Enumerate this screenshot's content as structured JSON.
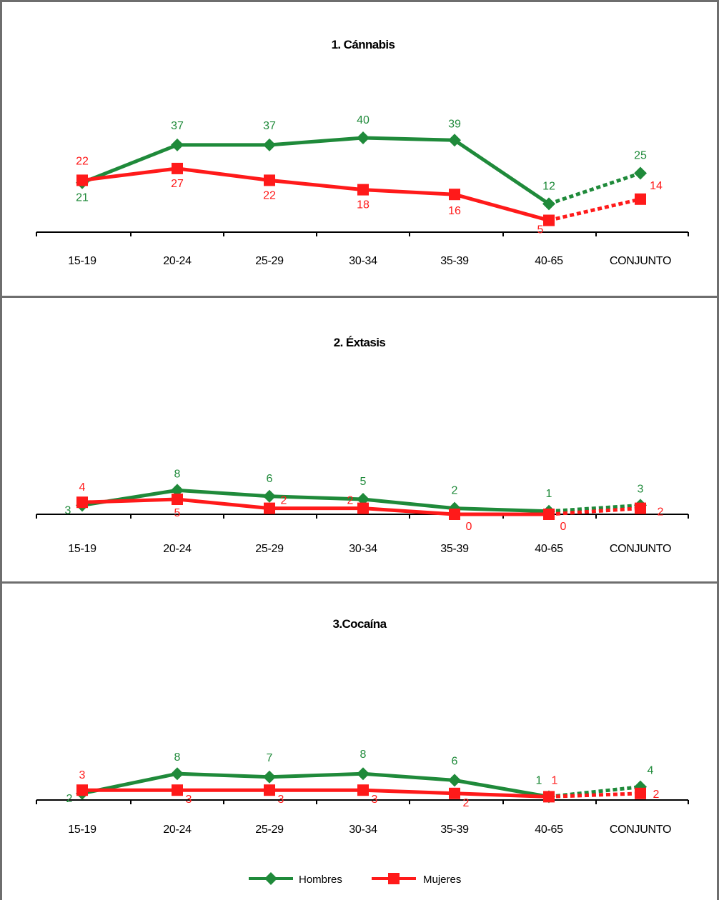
{
  "chart_data": [
    {
      "type": "line",
      "title": "1. Cánnabis",
      "categories": [
        "15-19",
        "20-24",
        "25-29",
        "30-34",
        "35-39",
        "40-65",
        "CONJUNTO"
      ],
      "ylim": [
        0,
        45
      ],
      "series": [
        {
          "name": "Hombres",
          "values": [
            21,
            37,
            37,
            40,
            39,
            12,
            25
          ]
        },
        {
          "name": "Mujeres",
          "values": [
            22,
            27,
            22,
            18,
            16,
            5,
            14
          ]
        }
      ]
    },
    {
      "type": "line",
      "title": "2. Éxtasis",
      "categories": [
        "15-19",
        "20-24",
        "25-29",
        "30-34",
        "35-39",
        "40-65",
        "CONJUNTO"
      ],
      "ylim": [
        0,
        20
      ],
      "series": [
        {
          "name": "Hombres",
          "values": [
            3,
            8,
            6,
            5,
            2,
            1,
            3
          ]
        },
        {
          "name": "Mujeres",
          "values": [
            4,
            5,
            2,
            2,
            0,
            0,
            2
          ]
        }
      ]
    },
    {
      "type": "line",
      "title": "3.Cocaína",
      "categories": [
        "15-19",
        "20-24",
        "25-29",
        "30-34",
        "35-39",
        "40-65",
        "CONJUNTO"
      ],
      "ylim": [
        0,
        20
      ],
      "series": [
        {
          "name": "Hombres",
          "values": [
            2,
            8,
            7,
            8,
            6,
            1,
            4
          ]
        },
        {
          "name": "Mujeres",
          "values": [
            3,
            3,
            3,
            3,
            2,
            1,
            2
          ]
        }
      ]
    }
  ],
  "legend": {
    "position": "bottom",
    "items": [
      {
        "label": "Hombres",
        "color": "#1f8a3a",
        "marker": "diamond"
      },
      {
        "label": "Mujeres",
        "color": "#ff1a1a",
        "marker": "square"
      }
    ]
  },
  "colors": {
    "hombres": "#1f8a3a",
    "mujeres": "#ff1a1a",
    "border": "#6e6e6e"
  }
}
